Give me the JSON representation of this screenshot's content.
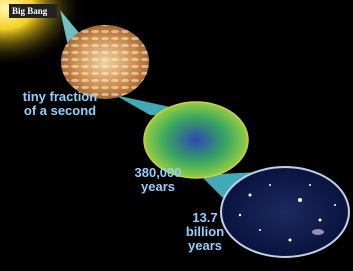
{
  "origin": "Big Bang",
  "stages": [
    [
      "tiny fraction",
      "of a second"
    ],
    [
      "380,000",
      "years"
    ],
    [
      "13.7",
      "billion",
      "years"
    ]
  ]
}
